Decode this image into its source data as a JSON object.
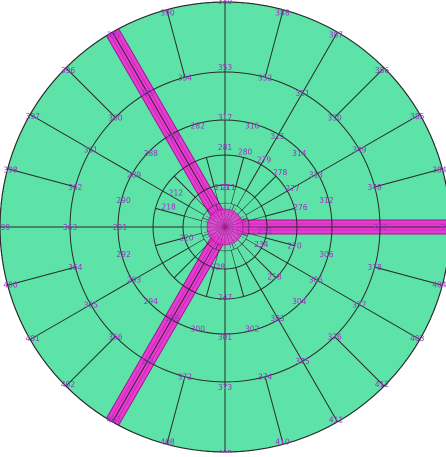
{
  "colors": {
    "fill": "#5de3a8",
    "edge": "#2a2a2a",
    "highlight": "#e83ad2",
    "highlight_edge": "#9a1a8c",
    "label": "#9b2fc4"
  },
  "mesh": {
    "ring_radii": [
      8,
      16,
      24,
      42,
      72,
      107,
      155,
      225
    ],
    "ring_offsets_deg": [
      0,
      0,
      0,
      0,
      0,
      0,
      0,
      0
    ],
    "ring_sector_counts": [
      8,
      12,
      16,
      24,
      24,
      12,
      12,
      24
    ],
    "spokes_deg": [
      0,
      30,
      60,
      90,
      120,
      150,
      180,
      210,
      240,
      270,
      300,
      330
    ],
    "highlight_bands_deg": [
      0,
      120,
      240
    ],
    "labels": [
      {
        "text": "389",
        "angle": -90,
        "r": 226
      },
      {
        "text": "388",
        "angle": -75,
        "r": 222
      },
      {
        "text": "387",
        "angle": -60,
        "r": 222
      },
      {
        "text": "386",
        "angle": -45,
        "r": 222
      },
      {
        "text": "385",
        "angle": -30,
        "r": 222
      },
      {
        "text": "384",
        "angle": -15,
        "r": 222
      },
      {
        "text": "395",
        "angle": 0,
        "r": 222
      },
      {
        "text": "404",
        "angle": 15,
        "r": 222
      },
      {
        "text": "403",
        "angle": 30,
        "r": 222
      },
      {
        "text": "412",
        "angle": 45,
        "r": 222
      },
      {
        "text": "411",
        "angle": 60,
        "r": 222
      },
      {
        "text": "410",
        "angle": 75,
        "r": 222
      },
      {
        "text": "409",
        "angle": 90,
        "r": 226
      },
      {
        "text": "408",
        "angle": 105,
        "r": 222
      },
      {
        "text": "407",
        "angle": 120,
        "r": 222
      },
      {
        "text": "402",
        "angle": 135,
        "r": 222
      },
      {
        "text": "401",
        "angle": 150,
        "r": 222
      },
      {
        "text": "400",
        "angle": 165,
        "r": 222
      },
      {
        "text": "399",
        "angle": 180,
        "r": 222
      },
      {
        "text": "398",
        "angle": 195,
        "r": 222
      },
      {
        "text": "397",
        "angle": 210,
        "r": 222
      },
      {
        "text": "396",
        "angle": 225,
        "r": 222
      },
      {
        "text": "391",
        "angle": 240,
        "r": 222
      },
      {
        "text": "390",
        "angle": 255,
        "r": 222
      },
      {
        "text": "353",
        "angle": -90,
        "r": 160
      },
      {
        "text": "352",
        "angle": -75,
        "r": 155
      },
      {
        "text": "351",
        "angle": -60,
        "r": 155
      },
      {
        "text": "350",
        "angle": -45,
        "r": 155
      },
      {
        "text": "349",
        "angle": -30,
        "r": 155
      },
      {
        "text": "348",
        "angle": -15,
        "r": 155
      },
      {
        "text": "347",
        "angle": 0,
        "r": 155
      },
      {
        "text": "378",
        "angle": 15,
        "r": 155
      },
      {
        "text": "377",
        "angle": 30,
        "r": 155
      },
      {
        "text": "376",
        "angle": 45,
        "r": 155
      },
      {
        "text": "375",
        "angle": 60,
        "r": 155
      },
      {
        "text": "374",
        "angle": 75,
        "r": 155
      },
      {
        "text": "373",
        "angle": 90,
        "r": 160
      },
      {
        "text": "372",
        "angle": 105,
        "r": 155
      },
      {
        "text": "371",
        "angle": 120,
        "r": 155
      },
      {
        "text": "366",
        "angle": 135,
        "r": 155
      },
      {
        "text": "365",
        "angle": 150,
        "r": 155
      },
      {
        "text": "364",
        "angle": 165,
        "r": 155
      },
      {
        "text": "363",
        "angle": 180,
        "r": 155
      },
      {
        "text": "362",
        "angle": 195,
        "r": 155
      },
      {
        "text": "361",
        "angle": 210,
        "r": 155
      },
      {
        "text": "360",
        "angle": 225,
        "r": 155
      },
      {
        "text": "355",
        "angle": 240,
        "r": 155
      },
      {
        "text": "354",
        "angle": 255,
        "r": 155
      },
      {
        "text": "317",
        "angle": -90,
        "r": 110
      },
      {
        "text": "316",
        "angle": -75,
        "r": 105
      },
      {
        "text": "315",
        "angle": -60,
        "r": 105
      },
      {
        "text": "314",
        "angle": -45,
        "r": 105
      },
      {
        "text": "313",
        "angle": -30,
        "r": 105
      },
      {
        "text": "312",
        "angle": -15,
        "r": 105
      },
      {
        "text": "306",
        "angle": 15,
        "r": 105
      },
      {
        "text": "305",
        "angle": 30,
        "r": 105
      },
      {
        "text": "304",
        "angle": 45,
        "r": 105
      },
      {
        "text": "303",
        "angle": 60,
        "r": 105
      },
      {
        "text": "302",
        "angle": 75,
        "r": 105
      },
      {
        "text": "301",
        "angle": 90,
        "r": 110
      },
      {
        "text": "300",
        "angle": 105,
        "r": 105
      },
      {
        "text": "299",
        "angle": 120,
        "r": 105
      },
      {
        "text": "294",
        "angle": 135,
        "r": 105
      },
      {
        "text": "293",
        "angle": 150,
        "r": 105
      },
      {
        "text": "292",
        "angle": 165,
        "r": 105
      },
      {
        "text": "291",
        "angle": 180,
        "r": 105
      },
      {
        "text": "290",
        "angle": 195,
        "r": 105
      },
      {
        "text": "289",
        "angle": 210,
        "r": 105
      },
      {
        "text": "288",
        "angle": 225,
        "r": 105
      },
      {
        "text": "283",
        "angle": 240,
        "r": 105
      },
      {
        "text": "282",
        "angle": 255,
        "r": 105
      },
      {
        "text": "281",
        "angle": -90,
        "r": 80
      },
      {
        "text": "280",
        "angle": -75,
        "r": 78
      },
      {
        "text": "279",
        "angle": -60,
        "r": 78
      },
      {
        "text": "278",
        "angle": -45,
        "r": 78
      },
      {
        "text": "277",
        "angle": -30,
        "r": 78
      },
      {
        "text": "276",
        "angle": -15,
        "r": 78
      },
      {
        "text": "270",
        "angle": 15,
        "r": 72
      },
      {
        "text": "258",
        "angle": 45,
        "r": 70
      },
      {
        "text": "247",
        "angle": 90,
        "r": 70
      },
      {
        "text": "218",
        "angle": 200,
        "r": 60
      },
      {
        "text": "212",
        "angle": 215,
        "r": 60
      },
      {
        "text": "210",
        "angle": -95,
        "r": 40
      },
      {
        "text": "211",
        "angle": -85,
        "r": 40
      },
      {
        "text": "233",
        "angle": 5,
        "r": 40
      },
      {
        "text": "234",
        "angle": 25,
        "r": 40
      },
      {
        "text": "228",
        "angle": 100,
        "r": 40
      },
      {
        "text": "220",
        "angle": 165,
        "r": 40
      }
    ]
  }
}
